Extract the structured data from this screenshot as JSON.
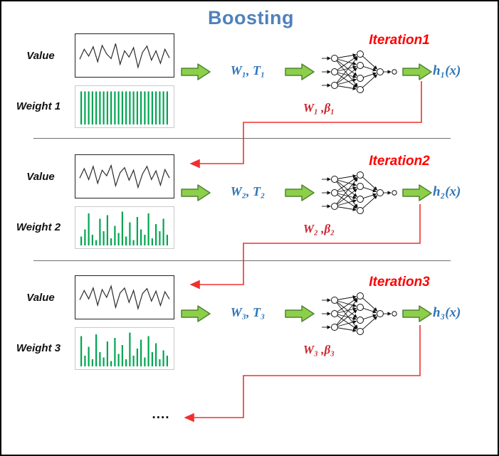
{
  "title": "Boosting",
  "ellipsis": "....",
  "colors": {
    "title": "#4F81BD",
    "blue_text": "#2E75B6",
    "red_label": "#FF0000",
    "update_red": "#C9252D",
    "feedback": "#F03030",
    "green_bar": "#00A551",
    "arrow_fill": "#8CD04A",
    "arrow_stroke": "#538135",
    "signal_line": "#2b2b2b"
  },
  "iterations": [
    {
      "value_label": "Value",
      "weight_label": "Weight 1",
      "input_text": "W₁, T₁",
      "iteration_label": "Iteration1",
      "output_text": "h₁(x)",
      "update_text": "W₁ ,β₁",
      "value_series": [
        0.62,
        0.3,
        0.52,
        0.22,
        0.7,
        0.18,
        0.45,
        0.6,
        0.12,
        0.78,
        0.35,
        0.55,
        0.25,
        0.88,
        0.4,
        0.2,
        0.65,
        0.35,
        0.75,
        0.3,
        0.58
      ],
      "weights": [
        0.93,
        0.93,
        0.93,
        0.93,
        0.93,
        0.93,
        0.93,
        0.93,
        0.93,
        0.93,
        0.93,
        0.93,
        0.93,
        0.93,
        0.93,
        0.93,
        0.93,
        0.93,
        0.93,
        0.93,
        0.93,
        0.93,
        0.93,
        0.93
      ]
    },
    {
      "value_label": "Value",
      "weight_label": "Weight 2",
      "input_text": "W₂, T₂",
      "iteration_label": "Iteration2",
      "output_text": "h₂(x)",
      "update_text": "W₂ ,β₂",
      "value_series": [
        0.55,
        0.25,
        0.6,
        0.18,
        0.72,
        0.3,
        0.48,
        0.15,
        0.8,
        0.38,
        0.22,
        0.62,
        0.3,
        0.85,
        0.42,
        0.18,
        0.6,
        0.32,
        0.78,
        0.28,
        0.55
      ],
      "weights": [
        0.25,
        0.45,
        0.9,
        0.3,
        0.15,
        0.75,
        0.4,
        0.85,
        0.2,
        0.55,
        0.35,
        0.95,
        0.25,
        0.65,
        0.15,
        0.8,
        0.45,
        0.3,
        0.9,
        0.2,
        0.6,
        0.4,
        0.75,
        0.3
      ]
    },
    {
      "value_label": "Value",
      "weight_label": "Weight 3",
      "input_text": "W₃, T₃",
      "iteration_label": "Iteration3",
      "output_text": "h₃(x)",
      "update_text": "W₃ ,β₃",
      "value_series": [
        0.58,
        0.28,
        0.55,
        0.2,
        0.75,
        0.25,
        0.5,
        0.14,
        0.82,
        0.36,
        0.2,
        0.66,
        0.28,
        0.86,
        0.38,
        0.22,
        0.62,
        0.3,
        0.76,
        0.32,
        0.56
      ],
      "weights": [
        0.85,
        0.3,
        0.55,
        0.2,
        0.9,
        0.4,
        0.25,
        0.7,
        0.15,
        0.8,
        0.35,
        0.6,
        0.2,
        0.95,
        0.3,
        0.5,
        0.75,
        0.25,
        0.85,
        0.4,
        0.65,
        0.2,
        0.45,
        0.3
      ]
    }
  ]
}
